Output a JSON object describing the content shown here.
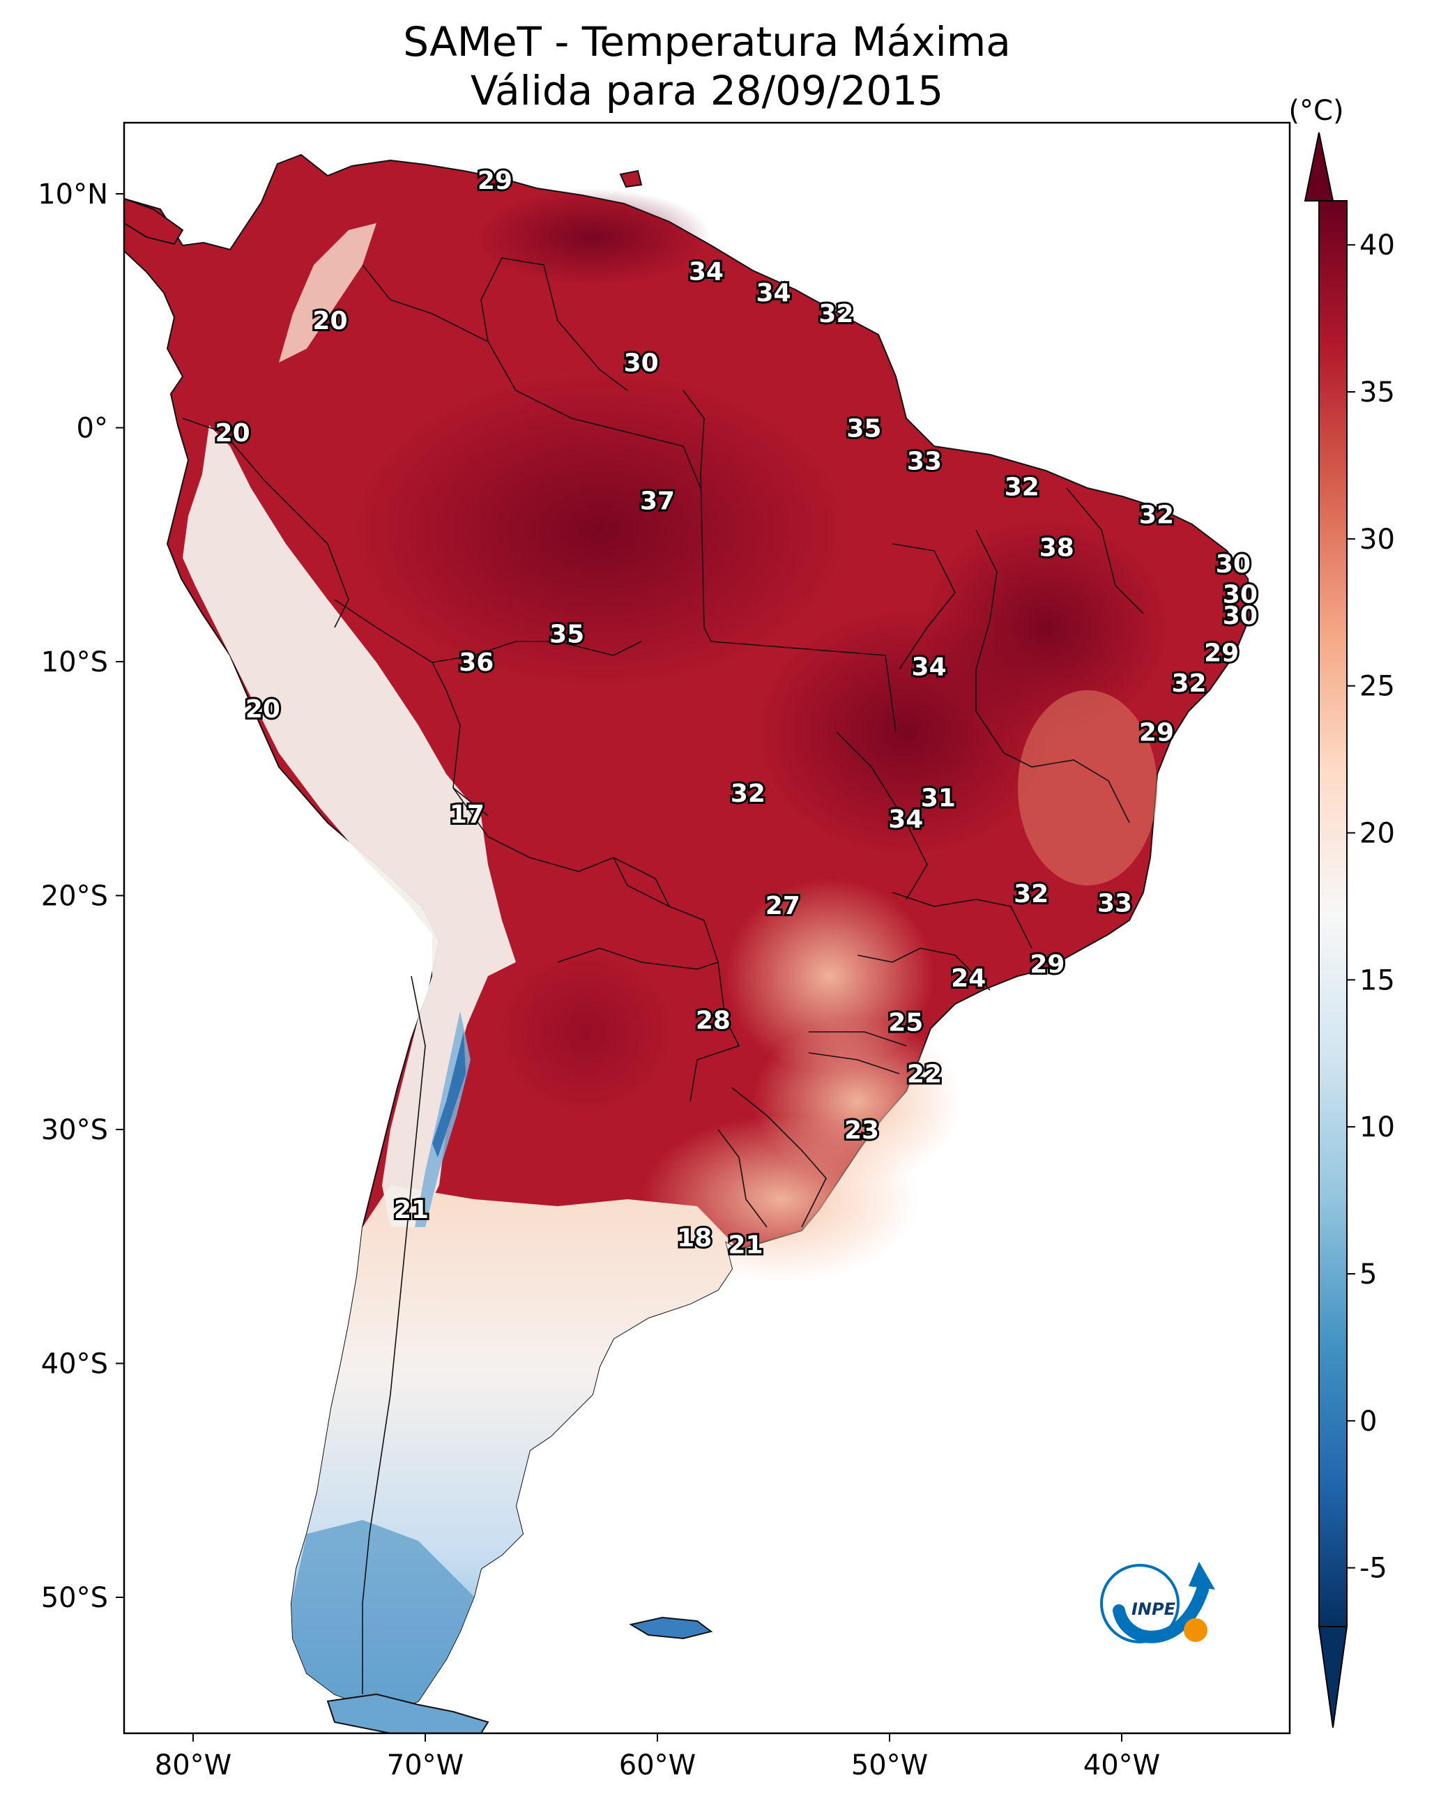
{
  "title": {
    "line1": "SAMeT - Temperatura Máxima",
    "line2": "Válida para 28/09/2015"
  },
  "colorbar": {
    "unit": "(°C)",
    "ticks": [
      "40",
      "35",
      "30",
      "25",
      "20",
      "15",
      "10",
      "5",
      "0",
      "-5"
    ],
    "colors": [
      "#67001f",
      "#b2182b",
      "#d6604d",
      "#f4a582",
      "#fddbc7",
      "#f7f7f7",
      "#d1e5f0",
      "#92c5de",
      "#4393c3",
      "#2166ac",
      "#053061"
    ]
  },
  "axes": {
    "lat_ticks": [
      "10°N",
      "0°",
      "10°S",
      "20°S",
      "30°S",
      "40°S",
      "50°S"
    ],
    "lon_ticks": [
      "80°W",
      "70°W",
      "60°W",
      "50°W",
      "40°W"
    ]
  },
  "logo": {
    "text": "INPE",
    "accent": "#f39200",
    "blue": "#0072bc"
  },
  "stations": [
    {
      "lon": -67.0,
      "lat": 10.6,
      "value": "29"
    },
    {
      "lon": -57.9,
      "lat": 6.7,
      "value": "34"
    },
    {
      "lon": -55.0,
      "lat": 5.8,
      "value": "34"
    },
    {
      "lon": -52.3,
      "lat": 4.9,
      "value": "32"
    },
    {
      "lon": -74.1,
      "lat": 4.6,
      "value": "20"
    },
    {
      "lon": -60.7,
      "lat": 2.8,
      "value": "30"
    },
    {
      "lon": -78.3,
      "lat": -0.2,
      "value": "20"
    },
    {
      "lon": -51.1,
      "lat": 0.0,
      "value": "35"
    },
    {
      "lon": -48.5,
      "lat": -1.4,
      "value": "33"
    },
    {
      "lon": -44.3,
      "lat": -2.5,
      "value": "32"
    },
    {
      "lon": -60.0,
      "lat": -3.1,
      "value": "37"
    },
    {
      "lon": -38.5,
      "lat": -3.7,
      "value": "32"
    },
    {
      "lon": -42.8,
      "lat": -5.1,
      "value": "38"
    },
    {
      "lon": -35.2,
      "lat": -5.8,
      "value": "30"
    },
    {
      "lon": -34.9,
      "lat": -7.1,
      "value": "30"
    },
    {
      "lon": -34.9,
      "lat": -8.0,
      "value": "30"
    },
    {
      "lon": -63.9,
      "lat": -8.8,
      "value": "35"
    },
    {
      "lon": -35.7,
      "lat": -9.6,
      "value": "29"
    },
    {
      "lon": -67.8,
      "lat": -10.0,
      "value": "36"
    },
    {
      "lon": -48.3,
      "lat": -10.2,
      "value": "34"
    },
    {
      "lon": -37.1,
      "lat": -10.9,
      "value": "32"
    },
    {
      "lon": -77.0,
      "lat": -12.0,
      "value": "20"
    },
    {
      "lon": -38.5,
      "lat": -13.0,
      "value": "29"
    },
    {
      "lon": -56.1,
      "lat": -15.6,
      "value": "32"
    },
    {
      "lon": -47.9,
      "lat": -15.8,
      "value": "31"
    },
    {
      "lon": -49.3,
      "lat": -16.7,
      "value": "34"
    },
    {
      "lon": -68.2,
      "lat": -16.5,
      "value": "17"
    },
    {
      "lon": -43.9,
      "lat": -19.9,
      "value": "32"
    },
    {
      "lon": -40.3,
      "lat": -20.3,
      "value": "33"
    },
    {
      "lon": -54.6,
      "lat": -20.4,
      "value": "27"
    },
    {
      "lon": -43.2,
      "lat": -22.9,
      "value": "29"
    },
    {
      "lon": -46.6,
      "lat": -23.5,
      "value": "24"
    },
    {
      "lon": -49.3,
      "lat": -25.4,
      "value": "25"
    },
    {
      "lon": -57.6,
      "lat": -25.3,
      "value": "28"
    },
    {
      "lon": -48.5,
      "lat": -27.6,
      "value": "22"
    },
    {
      "lon": -51.2,
      "lat": -30.0,
      "value": "23"
    },
    {
      "lon": -70.6,
      "lat": -33.4,
      "value": "21"
    },
    {
      "lon": -58.4,
      "lat": -34.6,
      "value": "18"
    },
    {
      "lon": -56.2,
      "lat": -34.9,
      "value": "21"
    }
  ]
}
